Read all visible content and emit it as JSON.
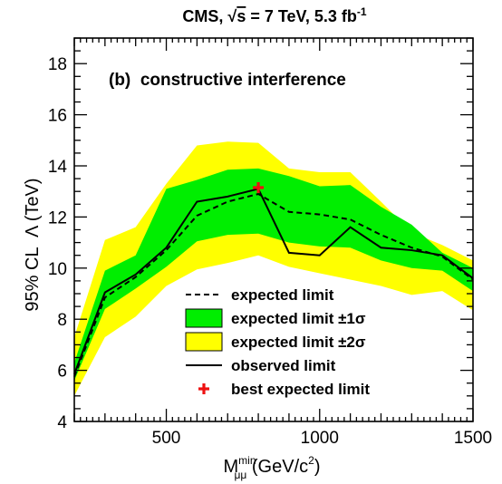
{
  "chart_data": {
    "type": "line",
    "title": {
      "prefix": "CMS, ",
      "sqrt": "√",
      "s": "s",
      "energy": " = 7 TeV, 5.3 fb",
      "lumi_sup": "-1"
    },
    "annotation": "(b)  constructive interference",
    "xlabel": {
      "main": "M",
      "sup": "min",
      "sub": "μμ",
      "unit": " (GeV/c",
      "unit_sup": "2",
      "unit_end": ")"
    },
    "ylabel": "95% CL  Λ (TeV)",
    "xlim": [
      200,
      1500
    ],
    "ylim": [
      4,
      19
    ],
    "x_ticks": [
      500,
      1000,
      1500
    ],
    "x_tick_labels": [
      "500",
      "1000",
      "1500"
    ],
    "y_ticks": [
      4,
      6,
      8,
      10,
      12,
      14,
      16,
      18
    ],
    "y_tick_labels": [
      "4",
      "6",
      "8",
      "10",
      "12",
      "14",
      "16",
      "18"
    ],
    "x": [
      200,
      300,
      400,
      500,
      600,
      700,
      800,
      900,
      1000,
      1100,
      1200,
      1300,
      1400,
      1500
    ],
    "series": [
      {
        "name": "expected limit ±2σ",
        "kind": "band",
        "color": "#ffff00",
        "low": [
          5.0,
          7.3,
          8.1,
          9.3,
          9.95,
          10.2,
          10.5,
          10.05,
          9.8,
          9.55,
          9.3,
          8.95,
          9.1,
          8.35
        ],
        "high": [
          7.3,
          11.1,
          11.6,
          13.3,
          14.8,
          14.95,
          14.9,
          13.9,
          13.75,
          13.75,
          12.6,
          11.4,
          10.9,
          10.3
        ]
      },
      {
        "name": "expected limit ±1σ",
        "kind": "band",
        "color": "#00ee00",
        "low": [
          5.6,
          8.4,
          9.2,
          10.05,
          11.05,
          11.3,
          11.35,
          11.0,
          10.85,
          10.8,
          10.3,
          10.0,
          9.9,
          9.1
        ],
        "high": [
          6.3,
          9.9,
          10.5,
          13.1,
          13.45,
          13.85,
          13.9,
          13.6,
          13.2,
          13.25,
          12.4,
          11.7,
          10.6,
          10.0
        ]
      },
      {
        "name": "expected limit",
        "kind": "line",
        "style": "dashed",
        "color": "#000000",
        "values": [
          5.75,
          8.85,
          9.65,
          10.7,
          12.05,
          12.6,
          12.9,
          12.2,
          12.1,
          11.9,
          11.3,
          10.8,
          10.45,
          9.55
        ]
      },
      {
        "name": "observed limit",
        "kind": "line",
        "style": "solid",
        "color": "#000000",
        "values": [
          5.85,
          9.05,
          9.75,
          10.8,
          12.6,
          12.8,
          13.1,
          10.6,
          10.5,
          11.6,
          10.8,
          10.7,
          10.5,
          9.6
        ]
      }
    ],
    "best_expected": {
      "name": "best expected limit",
      "x": 800,
      "y": 13.15,
      "color": "#ee1111",
      "marker": "cross"
    },
    "legend": {
      "placement": "center",
      "entries": [
        {
          "label": "expected limit",
          "swatch": "dashed"
        },
        {
          "label": "expected limit ±1σ",
          "swatch": "band",
          "color": "#00ee00"
        },
        {
          "label": "expected limit ±2σ",
          "swatch": "band",
          "color": "#ffff00"
        },
        {
          "label": "observed limit",
          "swatch": "solid"
        },
        {
          "label": "best expected limit",
          "swatch": "cross",
          "color": "#ee1111"
        }
      ]
    },
    "grid": false
  }
}
